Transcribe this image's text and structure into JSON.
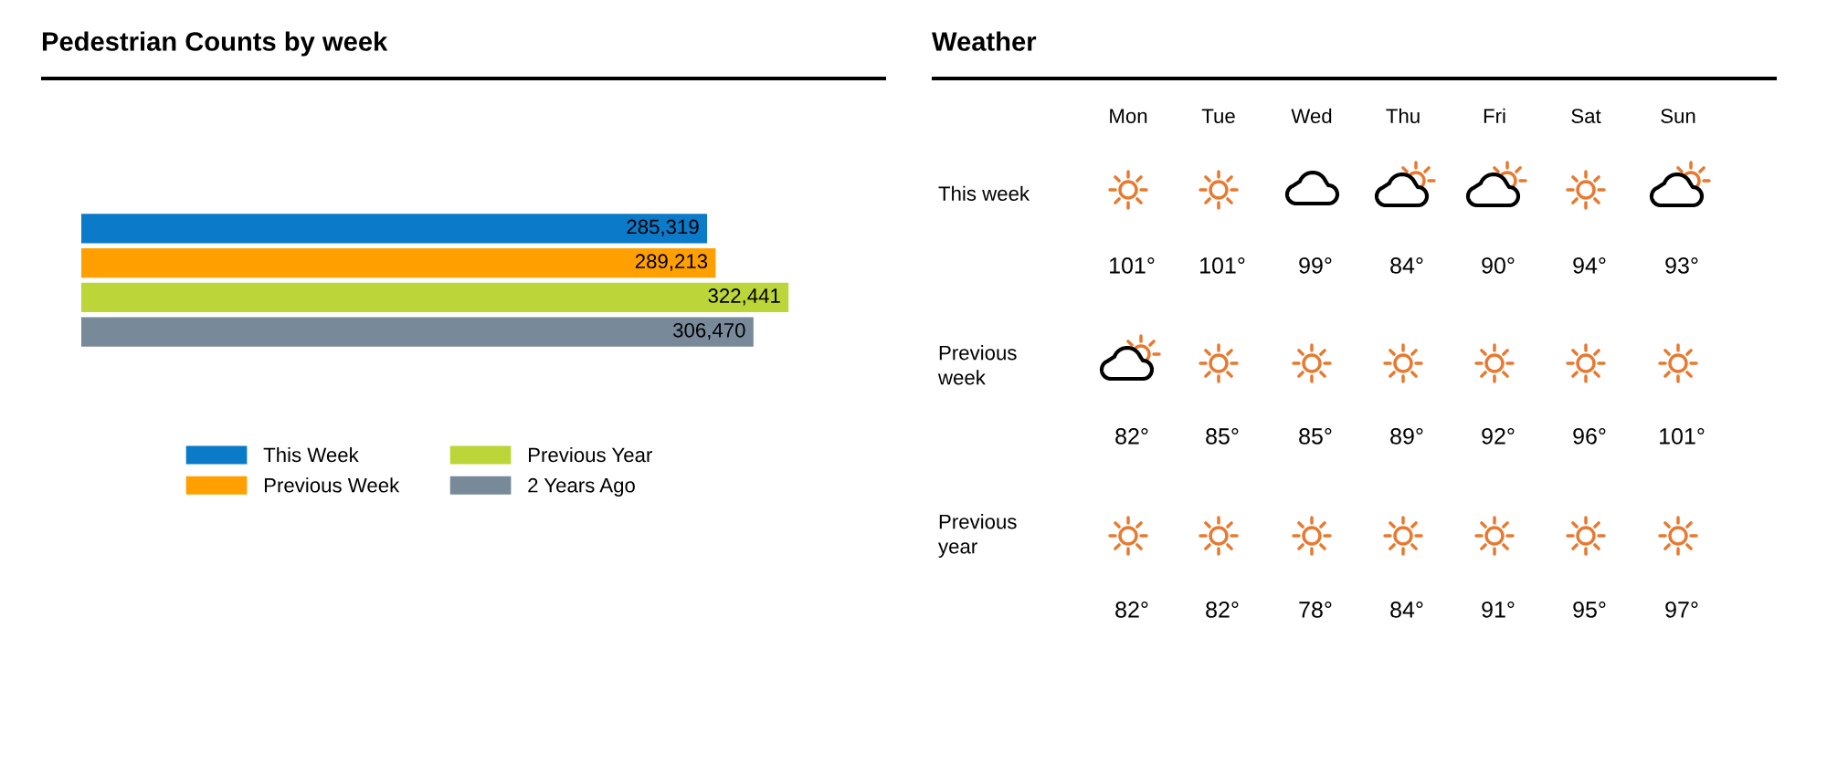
{
  "chart_data": [
    {
      "type": "bar",
      "title": "Pedestrian Counts by week",
      "orientation": "horizontal",
      "categories": [
        null
      ],
      "legend": "bottom",
      "series": [
        {
          "name": "This Week",
          "color": "#0a7ac9",
          "values": [
            285319
          ],
          "value_labels": [
            "285,319"
          ]
        },
        {
          "name": "Previous Week",
          "color": "#ffa000",
          "values": [
            289213
          ],
          "value_labels": [
            "289,213"
          ]
        },
        {
          "name": "Previous Year",
          "color": "#bcd538",
          "values": [
            322441
          ],
          "value_labels": [
            "322,441"
          ]
        },
        {
          "name": "2 Years Ago",
          "color": "#788a9a",
          "values": [
            306470
          ],
          "value_labels": [
            "306,470"
          ]
        }
      ]
    },
    {
      "type": "other",
      "title": "Weather",
      "categories": [
        "Mon",
        "Tue",
        "Wed",
        "Thu",
        "Fri",
        "Sat",
        "Sun"
      ],
      "y_categories": [
        "This week",
        "Previous week",
        "Previous year"
      ],
      "cell_labels": [
        [
          "101°",
          "101°",
          "99°",
          "84°",
          "90°",
          "94°",
          "93°"
        ],
        [
          "82°",
          "85°",
          "85°",
          "89°",
          "92°",
          "96°",
          "101°"
        ],
        [
          "82°",
          "82°",
          "78°",
          "84°",
          "91°",
          "95°",
          "97°"
        ]
      ]
    }
  ]
}
